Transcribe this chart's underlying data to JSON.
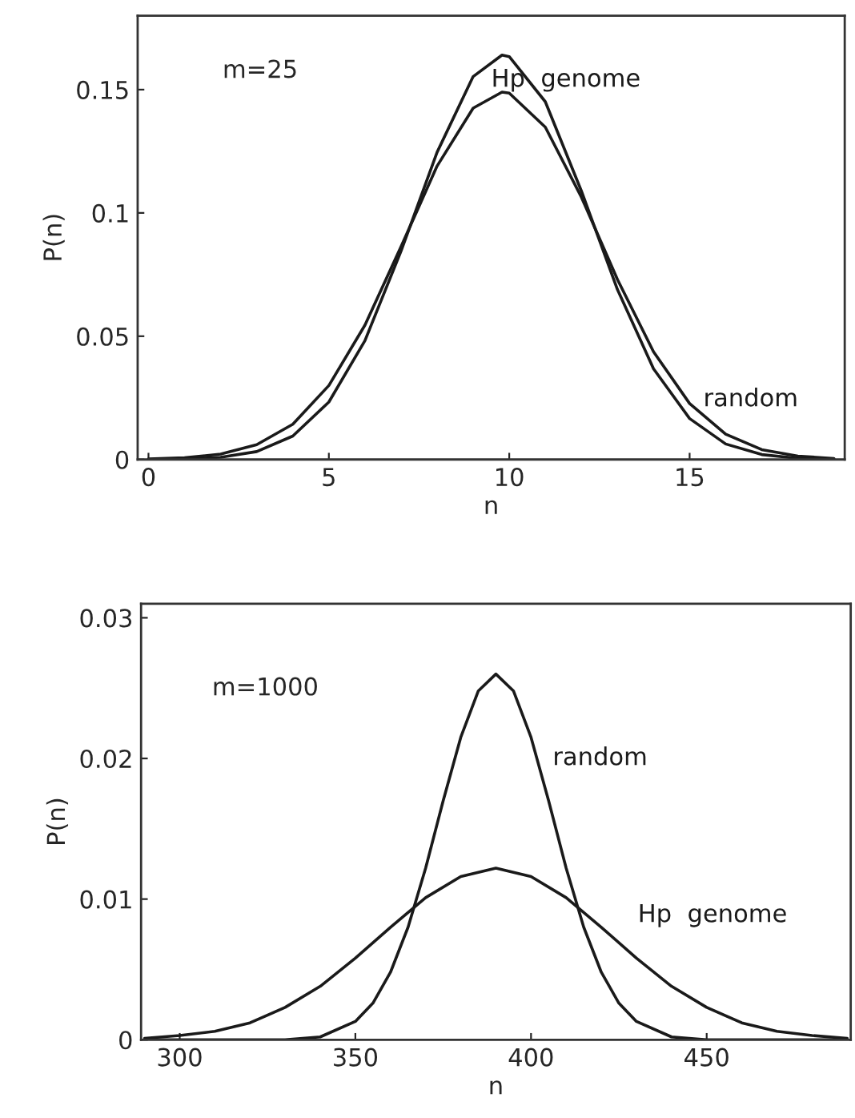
{
  "chart_data": [
    {
      "type": "line",
      "xlabel": "n",
      "ylabel": "P(n)",
      "annotations": [
        "m=25"
      ],
      "xlim": [
        -0.3,
        19.3
      ],
      "ylim": [
        0,
        0.18
      ],
      "xticks": [
        0,
        5,
        10,
        15
      ],
      "yticks": [
        0,
        {
          "value": 0.05,
          "label": "0.05"
        },
        {
          "value": 0.1,
          "label": "0.1"
        },
        {
          "value": 0.15,
          "label": "0.15"
        }
      ],
      "grid": false,
      "legend": false,
      "marker": "none",
      "line_style": "solid",
      "series": [
        {
          "name": "Hp  genome",
          "color": "#1a1a1a",
          "x": [
            0,
            1,
            2,
            3,
            4,
            5,
            6,
            7,
            8,
            9,
            9.8,
            10,
            11,
            12,
            13,
            14,
            15,
            16,
            17,
            18,
            19
          ],
          "values": [
            0.0,
            0.0002,
            0.0009,
            0.0032,
            0.0095,
            0.0233,
            0.0482,
            0.0845,
            0.1246,
            0.1553,
            0.164,
            0.1634,
            0.1451,
            0.1089,
            0.0689,
            0.0368,
            0.0166,
            0.0063,
            0.002,
            0.0005,
            0.0001
          ]
        },
        {
          "name": "random",
          "color": "#1a1a1a",
          "x": [
            0,
            1,
            2,
            3,
            4,
            5,
            6,
            7,
            8,
            9,
            9.8,
            10,
            11,
            12,
            13,
            14,
            15,
            16,
            17,
            18,
            19
          ],
          "values": [
            0.0002,
            0.0007,
            0.0022,
            0.006,
            0.0143,
            0.03,
            0.0545,
            0.0863,
            0.119,
            0.1425,
            0.149,
            0.1486,
            0.1348,
            0.1064,
            0.073,
            0.0437,
            0.0227,
            0.0103,
            0.004,
            0.0014,
            0.0004
          ]
        }
      ]
    },
    {
      "type": "line",
      "xlabel": "n",
      "ylabel": "P(n)",
      "annotations": [
        "m=1000"
      ],
      "xlim": [
        289,
        491
      ],
      "ylim": [
        0,
        0.031
      ],
      "xticks": [
        300,
        350,
        400,
        450
      ],
      "yticks": [
        0,
        {
          "value": 0.01,
          "label": "0.01"
        },
        {
          "value": 0.02,
          "label": "0.02"
        },
        {
          "value": 0.03,
          "label": "0.03"
        }
      ],
      "grid": false,
      "legend": false,
      "marker": "none",
      "line_style": "solid",
      "series": [
        {
          "name": "random",
          "color": "#1a1a1a",
          "x": [
            290,
            300,
            310,
            320,
            330,
            340,
            350,
            355,
            360,
            365,
            370,
            375,
            380,
            385,
            390,
            395,
            400,
            405,
            410,
            415,
            420,
            425,
            430,
            440,
            450,
            460,
            470,
            480,
            490
          ],
          "values": [
            0.0,
            0.0,
            0.0,
            0.0,
            0.0,
            0.0002,
            0.0013,
            0.0026,
            0.0048,
            0.008,
            0.0122,
            0.017,
            0.0215,
            0.0248,
            0.026,
            0.0248,
            0.0215,
            0.017,
            0.0122,
            0.008,
            0.0048,
            0.0026,
            0.0013,
            0.0002,
            0.0,
            0.0,
            0.0,
            0.0,
            0.0
          ]
        },
        {
          "name": "Hp  genome",
          "color": "#1a1a1a",
          "x": [
            290,
            300,
            310,
            320,
            330,
            340,
            350,
            360,
            370,
            380,
            390,
            400,
            410,
            420,
            430,
            440,
            450,
            460,
            470,
            480,
            490
          ],
          "values": [
            0.0001,
            0.0003,
            0.0006,
            0.0012,
            0.0023,
            0.0038,
            0.0058,
            0.008,
            0.0101,
            0.0116,
            0.0122,
            0.0116,
            0.0101,
            0.008,
            0.0058,
            0.0038,
            0.0023,
            0.0012,
            0.0006,
            0.0003,
            0.0001
          ]
        }
      ]
    }
  ]
}
